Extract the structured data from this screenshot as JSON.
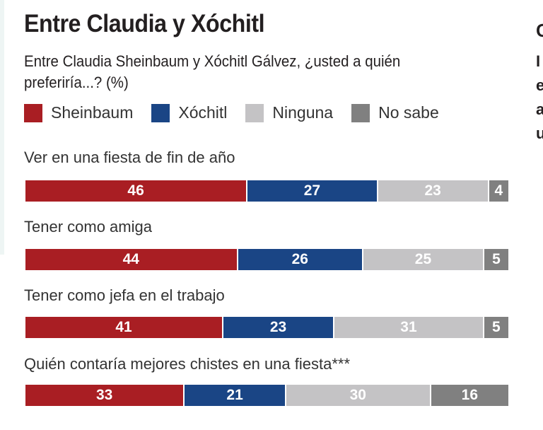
{
  "chart_data": {
    "type": "bar",
    "stacked": true,
    "orientation": "horizontal",
    "title": "Entre Claudia y Xóchitl",
    "subtitle": "Entre Claudia Sheinbaum y Xóchitl Gálvez, ¿usted a quién preferiría...? (%)",
    "categories": [
      "Ver en una fiesta de fin de año",
      "Tener como amiga",
      "Tener como jefa en el trabajo",
      "Quién contaría mejores chistes en una fiesta***"
    ],
    "series": [
      {
        "name": "Sheinbaum",
        "color": "#a91e23",
        "values": [
          46,
          44,
          41,
          33
        ]
      },
      {
        "name": "Xóchitl",
        "color": "#1a4585",
        "values": [
          27,
          26,
          23,
          21
        ]
      },
      {
        "name": "Ninguna",
        "color": "#c4c3c5",
        "values": [
          23,
          25,
          31,
          30
        ]
      },
      {
        "name": "No sabe",
        "color": "#808080",
        "values": [
          4,
          5,
          5,
          16
        ]
      }
    ],
    "xlim": [
      0,
      100
    ],
    "legend": "top-left"
  },
  "right_fragments": [
    "C",
    "I",
    "e",
    "a",
    "u"
  ]
}
